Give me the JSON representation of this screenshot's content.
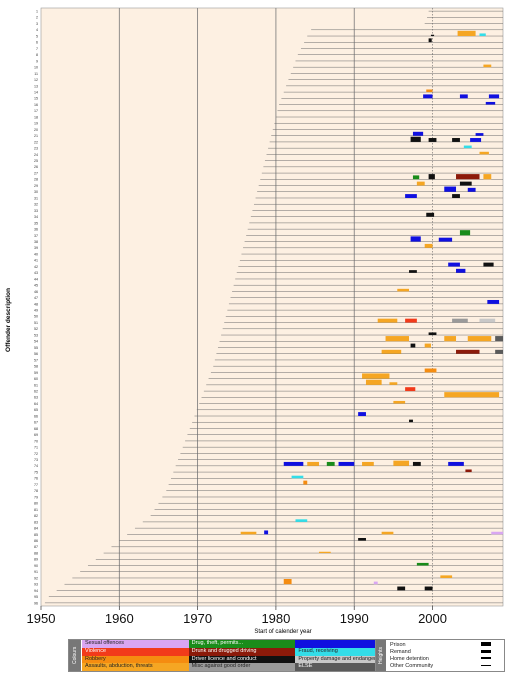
{
  "chart_data": {
    "type": "timeline",
    "title": "",
    "xlabel": "Start of calender year",
    "ylabel": "Offender description",
    "x_ticks": [
      "1950",
      "1960",
      "1970",
      "1980",
      "1990",
      "2000"
    ],
    "xlim": [
      1950,
      2009
    ],
    "reference_year": 2000,
    "offender_count": 96,
    "offender_labels": [
      "1",
      "2",
      "3",
      "4",
      "5",
      "6",
      "7",
      "8",
      "9",
      "10",
      "11",
      "12",
      "13",
      "14",
      "15",
      "16",
      "17",
      "18",
      "19",
      "20",
      "21",
      "22",
      "23",
      "24",
      "25",
      "26",
      "27",
      "28",
      "29",
      "30",
      "31",
      "32",
      "33",
      "34",
      "35",
      "36",
      "37",
      "38",
      "39",
      "40",
      "41",
      "42",
      "43",
      "44",
      "45",
      "46",
      "47",
      "48",
      "49",
      "50",
      "51",
      "52",
      "53",
      "54",
      "55",
      "56",
      "57",
      "58",
      "59",
      "60",
      "61",
      "62",
      "63",
      "64",
      "65",
      "66",
      "67",
      "68",
      "69",
      "70",
      "71",
      "72",
      "73",
      "74",
      "75",
      "76",
      "77",
      "78",
      "79",
      "80",
      "81",
      "82",
      "83",
      "84",
      "85",
      "86",
      "87",
      "88",
      "89",
      "90",
      "91",
      "92",
      "93",
      "94",
      "95",
      "96"
    ],
    "birth_years": [
      1999.5,
      1999.3,
      1999,
      1984.5,
      1984,
      1983.6,
      1983.2,
      1982.8,
      1982.5,
      1982.2,
      1981.9,
      1981.6,
      1981.3,
      1981,
      1980.7,
      1980.4,
      1980.2,
      1980,
      1979.8,
      1979.6,
      1979.4,
      1979.2,
      1979,
      1978.8,
      1978.6,
      1978.4,
      1978.2,
      1978,
      1977.8,
      1977.6,
      1977.4,
      1977.2,
      1977,
      1976.8,
      1976.6,
      1976.4,
      1976.2,
      1976,
      1975.8,
      1975.6,
      1975.4,
      1975.2,
      1975,
      1974.8,
      1974.6,
      1974.4,
      1974.2,
      1974,
      1973.8,
      1973.6,
      1973.4,
      1973.2,
      1973,
      1972.8,
      1972.6,
      1972.4,
      1972.2,
      1972,
      1971.7,
      1971.4,
      1971.1,
      1970.8,
      1970.5,
      1970.2,
      1969.9,
      1969.6,
      1969.3,
      1969,
      1968.7,
      1968.4,
      1968.1,
      1967.8,
      1967.5,
      1967.2,
      1966.9,
      1966.6,
      1966.3,
      1966,
      1965.5,
      1965,
      1964.5,
      1964,
      1963,
      1962,
      1961,
      1960,
      1959,
      1958,
      1957,
      1956,
      1955,
      1954,
      1953,
      1952,
      1951,
      1950.5
    ],
    "offence_categories": [
      {
        "name": "Sexual offences",
        "color": "#d9a6f2"
      },
      {
        "name": "Drug, theft, permits...",
        "color": "#1a8c1a"
      },
      {
        "name": "",
        "color": "#1010e0"
      },
      {
        "name": "Violence",
        "color": "#f23a1a"
      },
      {
        "name": "Drunk and drugged driving",
        "color": "#8c1a0a"
      },
      {
        "name": "Fraud, receiving",
        "color": "#33dde8"
      },
      {
        "name": "Robbery",
        "color": "#f58c10"
      },
      {
        "name": "Driver licence and conduct",
        "color": "#111111"
      },
      {
        "name": "Property damage and endangering",
        "color": "#c8c8c8"
      },
      {
        "name": "Assaults, abduction, threats",
        "color": "#f5a623"
      },
      {
        "name": "Misc against good order",
        "color": "#9a9a9a"
      },
      {
        "name": "ELSE",
        "color": "#5a5a5a"
      }
    ],
    "sentence_heights": [
      {
        "name": "Prison",
        "size": 4
      },
      {
        "name": "Remand",
        "size": 3
      },
      {
        "name": "Home detention",
        "size": 2
      },
      {
        "name": "Other Community",
        "size": 1
      }
    ],
    "events": [
      {
        "row": 5,
        "start": 1999.8,
        "end": 2000.2,
        "cat": 7,
        "h": 1
      },
      {
        "row": 5,
        "start": 2003.2,
        "end": 2005.5,
        "cat": 9,
        "h": 4
      },
      {
        "row": 5,
        "start": 2006,
        "end": 2006.8,
        "cat": 5,
        "h": 2
      },
      {
        "row": 6,
        "start": 1999.5,
        "end": 1999.9,
        "cat": 7,
        "h": 3
      },
      {
        "row": 10,
        "start": 2006.5,
        "end": 2007.5,
        "cat": 9,
        "h": 2
      },
      {
        "row": 14,
        "start": 1999.2,
        "end": 2000,
        "cat": 6,
        "h": 2
      },
      {
        "row": 15,
        "start": 1998.8,
        "end": 2000,
        "cat": 2,
        "h": 3
      },
      {
        "row": 15,
        "start": 2003.5,
        "end": 2004.5,
        "cat": 2,
        "h": 3
      },
      {
        "row": 15,
        "start": 2007.2,
        "end": 2008.5,
        "cat": 2,
        "h": 3
      },
      {
        "row": 16,
        "start": 2006.8,
        "end": 2008,
        "cat": 2,
        "h": 2
      },
      {
        "row": 21,
        "start": 1997.5,
        "end": 1998.8,
        "cat": 2,
        "h": 3
      },
      {
        "row": 21,
        "start": 2005.5,
        "end": 2006.5,
        "cat": 2,
        "h": 2
      },
      {
        "row": 22,
        "start": 1997.2,
        "end": 1998.5,
        "cat": 7,
        "h": 4
      },
      {
        "row": 22,
        "start": 1999.5,
        "end": 2000.5,
        "cat": 7,
        "h": 3
      },
      {
        "row": 22,
        "start": 2002.5,
        "end": 2003.5,
        "cat": 7,
        "h": 3
      },
      {
        "row": 22,
        "start": 2004.8,
        "end": 2006.2,
        "cat": 2,
        "h": 3
      },
      {
        "row": 23,
        "start": 2004,
        "end": 2005,
        "cat": 5,
        "h": 2
      },
      {
        "row": 24,
        "start": 2006,
        "end": 2007.2,
        "cat": 9,
        "h": 2
      },
      {
        "row": 28,
        "start": 1997.5,
        "end": 1998.3,
        "cat": 1,
        "h": 3
      },
      {
        "row": 28,
        "start": 1999.5,
        "end": 2000.3,
        "cat": 7,
        "h": 4
      },
      {
        "row": 28,
        "start": 2003,
        "end": 2006,
        "cat": 4,
        "h": 4
      },
      {
        "row": 28,
        "start": 2006.5,
        "end": 2007.5,
        "cat": 9,
        "h": 4
      },
      {
        "row": 29,
        "start": 1998,
        "end": 1999,
        "cat": 9,
        "h": 3
      },
      {
        "row": 29,
        "start": 2003.5,
        "end": 2005,
        "cat": 7,
        "h": 3
      },
      {
        "row": 30,
        "start": 2001.5,
        "end": 2003,
        "cat": 2,
        "h": 4
      },
      {
        "row": 30,
        "start": 2004.5,
        "end": 2005.5,
        "cat": 2,
        "h": 3
      },
      {
        "row": 31,
        "start": 1996.5,
        "end": 1998,
        "cat": 2,
        "h": 3
      },
      {
        "row": 31,
        "start": 2002.5,
        "end": 2003.5,
        "cat": 7,
        "h": 3
      },
      {
        "row": 34,
        "start": 1999.2,
        "end": 2000.2,
        "cat": 7,
        "h": 3
      },
      {
        "row": 37,
        "start": 2003.5,
        "end": 2004.8,
        "cat": 1,
        "h": 4
      },
      {
        "row": 38,
        "start": 1997.2,
        "end": 1998.5,
        "cat": 2,
        "h": 4
      },
      {
        "row": 38,
        "start": 2000.8,
        "end": 2002.5,
        "cat": 2,
        "h": 3
      },
      {
        "row": 39,
        "start": 1999,
        "end": 2000,
        "cat": 9,
        "h": 3
      },
      {
        "row": 42,
        "start": 2002,
        "end": 2003.5,
        "cat": 2,
        "h": 3
      },
      {
        "row": 42,
        "start": 2006.5,
        "end": 2007.8,
        "cat": 7,
        "h": 3
      },
      {
        "row": 43,
        "start": 1997,
        "end": 1998,
        "cat": 7,
        "h": 2
      },
      {
        "row": 43,
        "start": 2003,
        "end": 2004.2,
        "cat": 2,
        "h": 3
      },
      {
        "row": 46,
        "start": 1995.5,
        "end": 1997,
        "cat": 9,
        "h": 2
      },
      {
        "row": 48,
        "start": 2007,
        "end": 2008.5,
        "cat": 2,
        "h": 3
      },
      {
        "row": 51,
        "start": 1993,
        "end": 1995.5,
        "cat": 9,
        "h": 3
      },
      {
        "row": 51,
        "start": 1996.5,
        "end": 1998,
        "cat": 3,
        "h": 3
      },
      {
        "row": 51,
        "start": 2002.5,
        "end": 2004.5,
        "cat": 10,
        "h": 3
      },
      {
        "row": 51,
        "start": 2006,
        "end": 2008,
        "cat": 8,
        "h": 3
      },
      {
        "row": 53,
        "start": 1999.5,
        "end": 2000.5,
        "cat": 7,
        "h": 2
      },
      {
        "row": 54,
        "start": 1994,
        "end": 1997,
        "cat": 9,
        "h": 4
      },
      {
        "row": 54,
        "start": 2001.5,
        "end": 2003,
        "cat": 9,
        "h": 4
      },
      {
        "row": 54,
        "start": 2004.5,
        "end": 2007.5,
        "cat": 9,
        "h": 4
      },
      {
        "row": 54,
        "start": 2008,
        "end": 2009,
        "cat": 11,
        "h": 4
      },
      {
        "row": 55,
        "start": 1997.2,
        "end": 1997.8,
        "cat": 7,
        "h": 3
      },
      {
        "row": 55,
        "start": 1999,
        "end": 1999.8,
        "cat": 9,
        "h": 3
      },
      {
        "row": 56,
        "start": 1993.5,
        "end": 1996,
        "cat": 9,
        "h": 3
      },
      {
        "row": 56,
        "start": 2003,
        "end": 2006,
        "cat": 4,
        "h": 3
      },
      {
        "row": 56,
        "start": 2008,
        "end": 2009,
        "cat": 11,
        "h": 3
      },
      {
        "row": 59,
        "start": 1999,
        "end": 2000.5,
        "cat": 6,
        "h": 3
      },
      {
        "row": 60,
        "start": 1991,
        "end": 1994.5,
        "cat": 9,
        "h": 4
      },
      {
        "row": 61,
        "start": 1991.5,
        "end": 1993.5,
        "cat": 9,
        "h": 4
      },
      {
        "row": 61,
        "start": 1994.5,
        "end": 1995.5,
        "cat": 9,
        "h": 2
      },
      {
        "row": 62,
        "start": 1996.5,
        "end": 1997.8,
        "cat": 3,
        "h": 3
      },
      {
        "row": 63,
        "start": 2001.5,
        "end": 2008.5,
        "cat": 9,
        "h": 4
      },
      {
        "row": 64,
        "start": 1995,
        "end": 1996.5,
        "cat": 9,
        "h": 2
      },
      {
        "row": 66,
        "start": 1990.5,
        "end": 1991.5,
        "cat": 2,
        "h": 3
      },
      {
        "row": 67,
        "start": 1997,
        "end": 1997.5,
        "cat": 7,
        "h": 2
      },
      {
        "row": 74,
        "start": 1981,
        "end": 1983.5,
        "cat": 2,
        "h": 3
      },
      {
        "row": 74,
        "start": 1984,
        "end": 1985.5,
        "cat": 9,
        "h": 3
      },
      {
        "row": 74,
        "start": 1986.5,
        "end": 1987.5,
        "cat": 1,
        "h": 3
      },
      {
        "row": 74,
        "start": 1988,
        "end": 1990,
        "cat": 2,
        "h": 3
      },
      {
        "row": 74,
        "start": 1991,
        "end": 1992.5,
        "cat": 9,
        "h": 3
      },
      {
        "row": 74,
        "start": 1995,
        "end": 1997,
        "cat": 9,
        "h": 4
      },
      {
        "row": 74,
        "start": 1997.5,
        "end": 1998.5,
        "cat": 7,
        "h": 3
      },
      {
        "row": 74,
        "start": 2002,
        "end": 2004,
        "cat": 2,
        "h": 3
      },
      {
        "row": 75,
        "start": 2004.2,
        "end": 2005,
        "cat": 4,
        "h": 2
      },
      {
        "row": 76,
        "start": 1982,
        "end": 1983.5,
        "cat": 5,
        "h": 2
      },
      {
        "row": 77,
        "start": 1983.5,
        "end": 1984,
        "cat": 6,
        "h": 3
      },
      {
        "row": 83,
        "start": 1982.5,
        "end": 1984,
        "cat": 5,
        "h": 2
      },
      {
        "row": 85,
        "start": 1975.5,
        "end": 1977.5,
        "cat": 9,
        "h": 2
      },
      {
        "row": 85,
        "start": 1978.5,
        "end": 1979,
        "cat": 2,
        "h": 3
      },
      {
        "row": 85,
        "start": 1993.5,
        "end": 1995,
        "cat": 9,
        "h": 2
      },
      {
        "row": 85,
        "start": 2007.5,
        "end": 2009,
        "cat": 0,
        "h": 2
      },
      {
        "row": 86,
        "start": 1990.5,
        "end": 1991.5,
        "cat": 7,
        "h": 2
      },
      {
        "row": 88,
        "start": 1985.5,
        "end": 1987,
        "cat": 9,
        "h": 1
      },
      {
        "row": 90,
        "start": 1998,
        "end": 1999.5,
        "cat": 1,
        "h": 2
      },
      {
        "row": 92,
        "start": 2001,
        "end": 2002.5,
        "cat": 9,
        "h": 2
      },
      {
        "row": 93,
        "start": 1981,
        "end": 1982,
        "cat": 6,
        "h": 4
      },
      {
        "row": 93,
        "start": 1992.5,
        "end": 1993,
        "cat": 0,
        "h": 2
      },
      {
        "row": 94,
        "start": 1995.5,
        "end": 1996.5,
        "cat": 7,
        "h": 3
      },
      {
        "row": 94,
        "start": 1999,
        "end": 2000,
        "cat": 7,
        "h": 3
      }
    ]
  }
}
